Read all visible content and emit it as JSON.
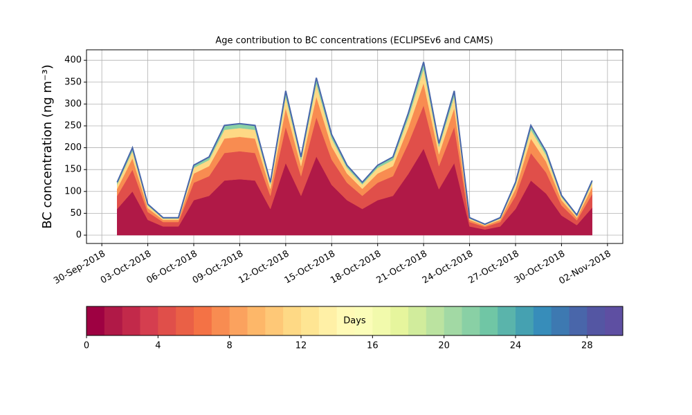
{
  "chart_data": {
    "type": "stacked_area",
    "title": "Age contribution to BC concentrations (ECLIPSEv6 and CAMS)",
    "y_label": "BC concentration (ng m⁻³)",
    "x": [
      "2018-10-01",
      "2018-10-02",
      "2018-10-03",
      "2018-10-04",
      "2018-10-05",
      "2018-10-06",
      "2018-10-07",
      "2018-10-08",
      "2018-10-09",
      "2018-10-10",
      "2018-10-11",
      "2018-10-12",
      "2018-10-13",
      "2018-10-14",
      "2018-10-15",
      "2018-10-16",
      "2018-10-17",
      "2018-10-18",
      "2018-10-19",
      "2018-10-20",
      "2018-10-21",
      "2018-10-22",
      "2018-10-23",
      "2018-10-24",
      "2018-10-25",
      "2018-10-26",
      "2018-10-27",
      "2018-10-28",
      "2018-10-29",
      "2018-10-30",
      "2018-10-31",
      "2018-11-01"
    ],
    "series": [
      {
        "color": "#b01947",
        "values": [
          60,
          100,
          35,
          20,
          20,
          80,
          90,
          125,
          128,
          125,
          60,
          165,
          90,
          180,
          115,
          80,
          60,
          80,
          90,
          140,
          198,
          105,
          165,
          20,
          13,
          20,
          60,
          125,
          95,
          45,
          23,
          63
        ]
      },
      {
        "color": "#e04f4a",
        "values": [
          30,
          50,
          18,
          10,
          10,
          40,
          45,
          63,
          64,
          63,
          30,
          83,
          45,
          90,
          58,
          40,
          30,
          40,
          45,
          70,
          99,
          53,
          83,
          10,
          6,
          10,
          30,
          63,
          48,
          23,
          11,
          31
        ]
      },
      {
        "color": "#f88c51",
        "values": [
          16,
          26,
          9,
          5,
          5,
          21,
          23,
          33,
          33,
          33,
          16,
          43,
          23,
          47,
          30,
          21,
          16,
          21,
          23,
          36,
          51,
          27,
          43,
          5,
          3,
          5,
          16,
          33,
          25,
          12,
          6,
          16
        ]
      },
      {
        "color": "#fed985",
        "values": [
          10,
          16,
          6,
          3,
          3,
          13,
          14,
          20,
          20,
          20,
          10,
          26,
          14,
          29,
          18,
          13,
          10,
          13,
          14,
          22,
          32,
          17,
          26,
          3,
          2,
          3,
          10,
          20,
          15,
          7,
          4,
          10
        ]
      },
      {
        "color": "#89d0a5",
        "values": [
          5,
          8,
          3,
          2,
          2,
          6,
          7,
          10,
          10,
          10,
          5,
          13,
          7,
          14,
          9,
          6,
          5,
          6,
          7,
          11,
          16,
          8,
          13,
          2,
          1,
          2,
          5,
          10,
          8,
          4,
          2,
          5
        ]
      }
    ],
    "top_line_color": "#4966aa",
    "xlim": [
      "2018-09-29",
      "2018-11-03"
    ],
    "xticks": [
      {
        "value": "2018-09-30",
        "label": "30-Sep-2018"
      },
      {
        "value": "2018-10-03",
        "label": "03-Oct-2018"
      },
      {
        "value": "2018-10-06",
        "label": "06-Oct-2018"
      },
      {
        "value": "2018-10-09",
        "label": "09-Oct-2018"
      },
      {
        "value": "2018-10-12",
        "label": "12-Oct-2018"
      },
      {
        "value": "2018-10-15",
        "label": "15-Oct-2018"
      },
      {
        "value": "2018-10-18",
        "label": "18-Oct-2018"
      },
      {
        "value": "2018-10-21",
        "label": "21-Oct-2018"
      },
      {
        "value": "2018-10-24",
        "label": "24-Oct-2018"
      },
      {
        "value": "2018-10-27",
        "label": "27-Oct-2018"
      },
      {
        "value": "2018-10-30",
        "label": "30-Oct-2018"
      },
      {
        "value": "2018-11-02",
        "label": "02-Nov-2018"
      }
    ],
    "ylim": [
      -19,
      424
    ],
    "yticks": [
      0,
      50,
      100,
      150,
      200,
      250,
      300,
      350,
      400
    ],
    "grid": true,
    "colorbar": {
      "label": "Days",
      "lim": [
        0,
        30
      ],
      "ticks": [
        0,
        4,
        8,
        12,
        16,
        20,
        24,
        28
      ],
      "colors": [
        "#9e0142",
        "#b01947",
        "#c2294a",
        "#d53e4f",
        "#e04f4a",
        "#ea6046",
        "#f47245",
        "#f88c51",
        "#fba25e",
        "#fdb769",
        "#fec877",
        "#fed985",
        "#fee593",
        "#fff0a6",
        "#fffab6",
        "#fbfdb8",
        "#f2faac",
        "#e6f59d",
        "#d1ec9c",
        "#bbe3a0",
        "#a2d9a4",
        "#89d0a5",
        "#70c6a5",
        "#5ab4ab",
        "#45a1b1",
        "#378dba",
        "#3d79b1",
        "#4966aa",
        "#5456a3",
        "#5e4fa2"
      ]
    }
  }
}
